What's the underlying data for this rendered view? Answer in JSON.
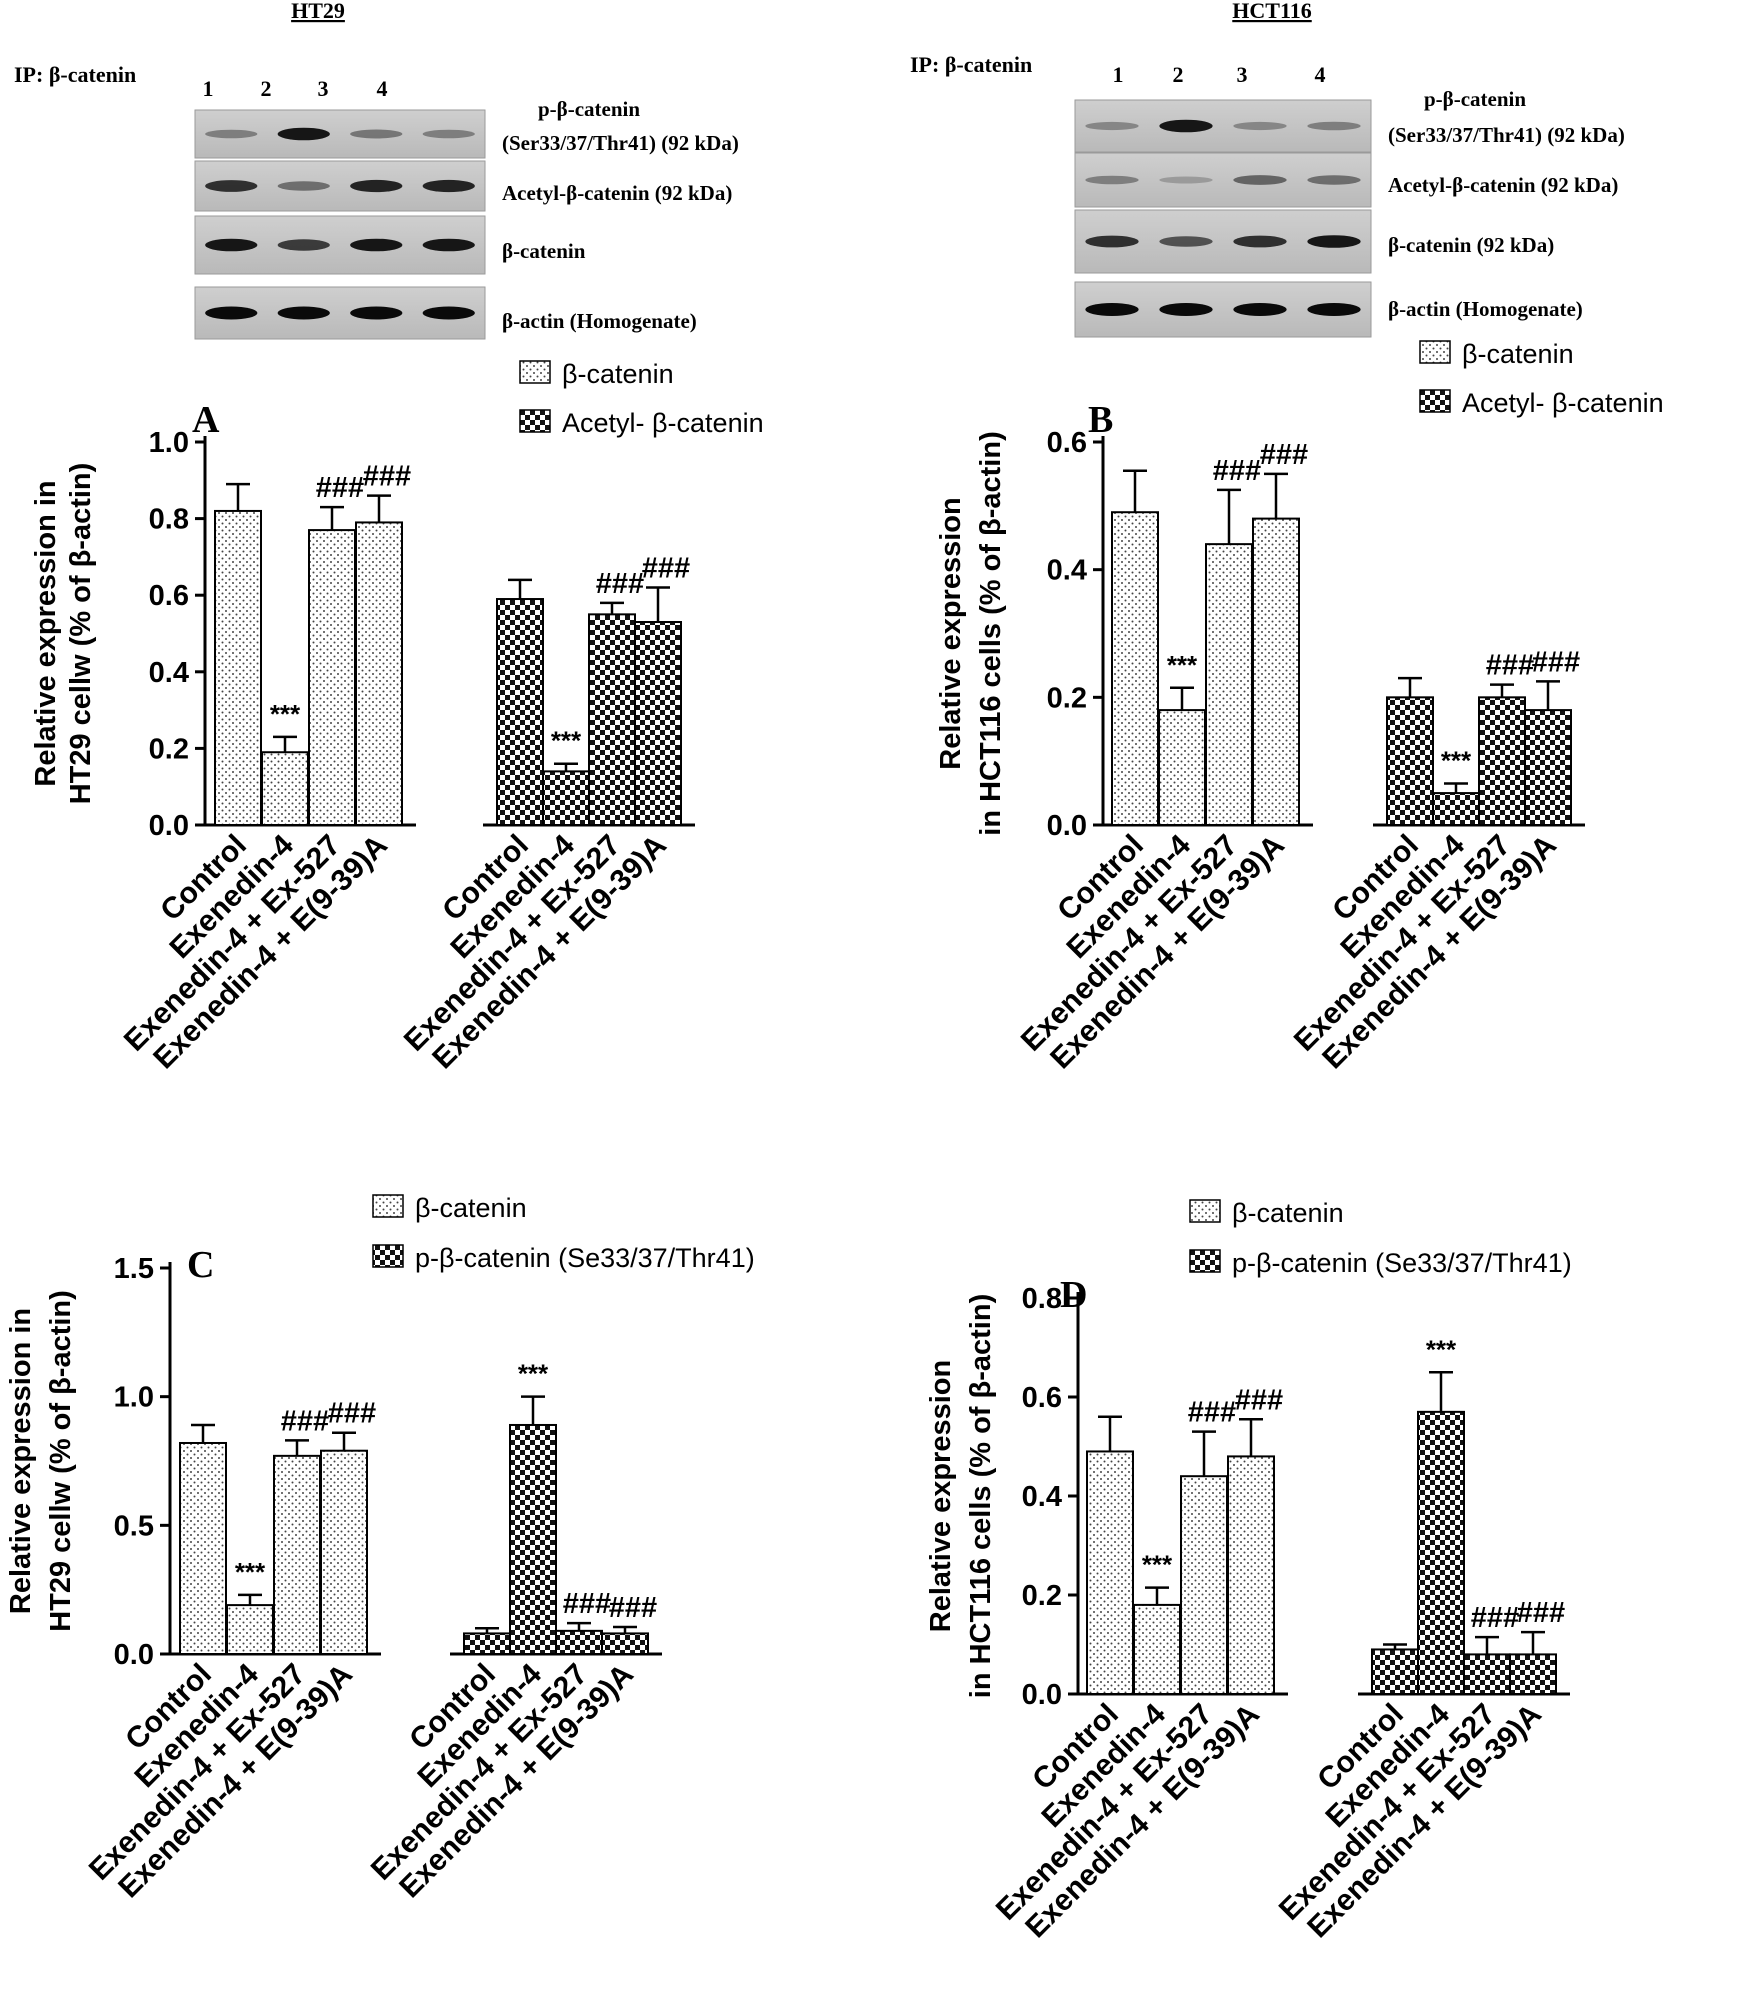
{
  "blots": [
    {
      "cell_line": "HT29",
      "ip_label": "IP: β-catenin",
      "lanes": [
        "1",
        "2",
        "3",
        "4"
      ],
      "bands": [
        {
          "label_lines": [
            "p-β-catenin",
            "(Ser33/37/Thr41) (92 kDa)"
          ],
          "intensity": [
            0.45,
            0.95,
            0.5,
            0.45
          ]
        },
        {
          "label_lines": [
            "Acetyl-β-catenin (92 kDa)"
          ],
          "intensity": [
            0.85,
            0.55,
            0.9,
            0.9
          ]
        },
        {
          "label_lines": [
            "β-catenin"
          ],
          "intensity": [
            0.95,
            0.8,
            0.95,
            0.95
          ]
        },
        {
          "label_lines": [
            "β-actin (Homogenate)"
          ],
          "intensity": [
            1,
            1,
            1,
            1
          ]
        }
      ]
    },
    {
      "cell_line": "HCT116",
      "ip_label": "IP: β-catenin",
      "lanes": [
        "1",
        "2",
        "3",
        "4"
      ],
      "bands": [
        {
          "label_lines": [
            "p-β-catenin",
            "(Ser33/37/Thr41) (92 kDa)"
          ],
          "intensity": [
            0.4,
            0.95,
            0.4,
            0.45
          ]
        },
        {
          "label_lines": [
            "Acetyl-β-catenin (92 kDa)"
          ],
          "intensity": [
            0.45,
            0.25,
            0.6,
            0.55
          ]
        },
        {
          "label_lines": [
            "β-catenin (92 kDa)"
          ],
          "intensity": [
            0.85,
            0.7,
            0.85,
            0.95
          ]
        },
        {
          "label_lines": [
            "β-actin (Homogenate)"
          ],
          "intensity": [
            1,
            1,
            1,
            1
          ]
        }
      ]
    }
  ],
  "chart_data": [
    {
      "type": "bar",
      "panel": "A",
      "ylabel_lines": [
        "Relative expression in",
        "HT29 cellw (% of β-actin)"
      ],
      "ylim": [
        0,
        1.0
      ],
      "yticks": [
        "0.0",
        "0.2",
        "0.4",
        "0.6",
        "0.8",
        "1.0"
      ],
      "ytick_values": [
        0,
        0.2,
        0.4,
        0.6,
        0.8,
        1.0
      ],
      "categories": [
        "Control",
        "Exenedin-4",
        "Exenedin-4 + Ex-527",
        "Exenedin-4 + E(9-39)A"
      ],
      "series": [
        {
          "name": "β-catenin",
          "values": [
            0.82,
            0.19,
            0.77,
            0.79
          ],
          "errors": [
            0.07,
            0.04,
            0.06,
            0.07
          ],
          "annotations": [
            "",
            "***",
            "###",
            "###"
          ]
        },
        {
          "name": "Acetyl- β-catenin",
          "values": [
            0.59,
            0.14,
            0.55,
            0.53
          ],
          "errors": [
            0.05,
            0.02,
            0.03,
            0.09
          ],
          "annotations": [
            "",
            "***",
            "###",
            "###"
          ]
        }
      ]
    },
    {
      "type": "bar",
      "panel": "B",
      "ylabel_lines": [
        "Relative expression",
        "in HCT116 cells (% of β-actin)"
      ],
      "ylim": [
        0,
        0.6
      ],
      "yticks": [
        "0.0",
        "0.2",
        "0.4",
        "0.6"
      ],
      "ytick_values": [
        0,
        0.2,
        0.4,
        0.6
      ],
      "categories": [
        "Control",
        "Exenedin-4",
        "Exenedin-4 + Ex-527",
        "Exenedin-4 + E(9-39)A"
      ],
      "series": [
        {
          "name": "β-catenin",
          "values": [
            0.49,
            0.18,
            0.44,
            0.48
          ],
          "errors": [
            0.065,
            0.035,
            0.085,
            0.07
          ],
          "annotations": [
            "",
            "***",
            "###",
            "###"
          ]
        },
        {
          "name": "Acetyl- β-catenin",
          "values": [
            0.2,
            0.05,
            0.2,
            0.18
          ],
          "errors": [
            0.03,
            0.015,
            0.02,
            0.045
          ],
          "annotations": [
            "",
            "***",
            "###",
            "###"
          ]
        }
      ]
    },
    {
      "type": "bar",
      "panel": "C",
      "ylabel_lines": [
        "Relative expression in",
        "HT29 cellw (% of β-actin)"
      ],
      "ylim": [
        0,
        1.5
      ],
      "yticks": [
        "0.0",
        "0.5",
        "1.0",
        "1.5"
      ],
      "ytick_values": [
        0,
        0.5,
        1.0,
        1.5
      ],
      "categories": [
        "Control",
        "Exenedin-4",
        "Exenedin-4 + Ex-527",
        "Exenedin-4 + E(9-39)A"
      ],
      "series": [
        {
          "name": "β-catenin",
          "values": [
            0.82,
            0.19,
            0.77,
            0.79
          ],
          "errors": [
            0.07,
            0.04,
            0.06,
            0.07
          ],
          "annotations": [
            "",
            "***",
            "###",
            "###"
          ]
        },
        {
          "name": "p-β-catenin (Se33/37/Thr41)",
          "values": [
            0.08,
            0.89,
            0.09,
            0.08
          ],
          "errors": [
            0.02,
            0.11,
            0.03,
            0.025
          ],
          "annotations": [
            "",
            "***",
            "###",
            "###"
          ]
        }
      ]
    },
    {
      "type": "bar",
      "panel": "D",
      "ylabel_lines": [
        "Relative expression",
        "in HCT116 cells (% of β-actin)"
      ],
      "ylim": [
        0,
        0.8
      ],
      "yticks": [
        "0.0",
        "0.2",
        "0.4",
        "0.6",
        "0.8"
      ],
      "ytick_values": [
        0,
        0.2,
        0.4,
        0.6,
        0.8
      ],
      "categories": [
        "Control",
        "Exenedin-4",
        "Exenedin-4 + Ex-527",
        "Exenedin-4 + E(9-39)A"
      ],
      "series": [
        {
          "name": "β-catenin",
          "values": [
            0.49,
            0.18,
            0.44,
            0.48
          ],
          "errors": [
            0.07,
            0.035,
            0.09,
            0.075
          ],
          "annotations": [
            "",
            "***",
            "###",
            "###"
          ]
        },
        {
          "name": "p-β-catenin (Se33/37/Thr41)",
          "values": [
            0.09,
            0.57,
            0.08,
            0.08
          ],
          "errors": [
            0.01,
            0.08,
            0.035,
            0.045
          ],
          "annotations": [
            "",
            "***",
            "###",
            "###"
          ]
        }
      ]
    }
  ]
}
